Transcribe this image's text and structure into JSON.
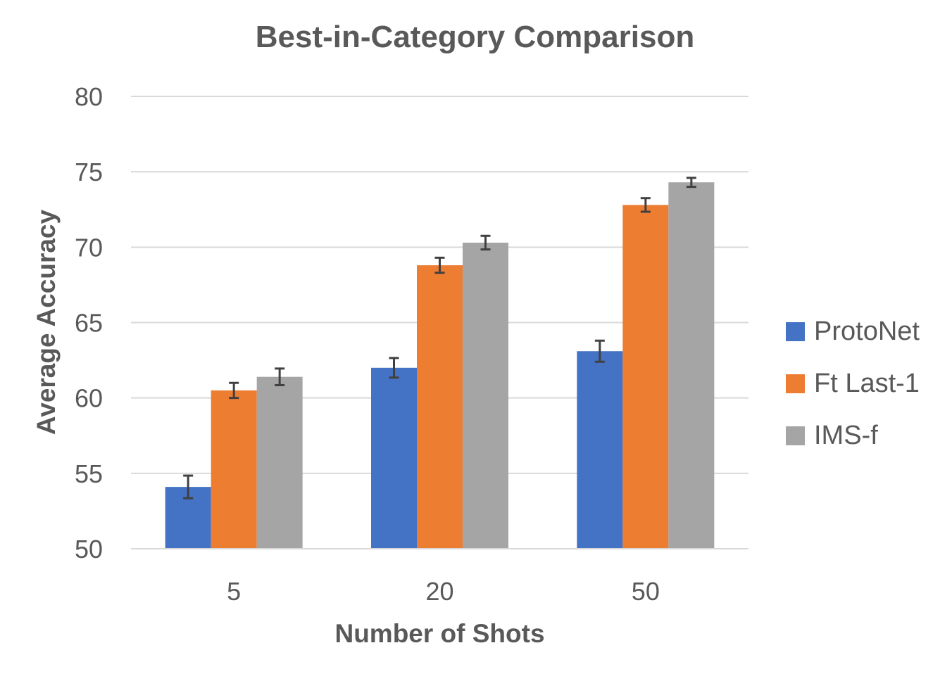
{
  "chart_data": {
    "type": "bar",
    "title": "Best-in-Category Comparison",
    "xlabel": "Number of Shots",
    "ylabel": "Average Accuracy",
    "categories": [
      "5",
      "20",
      "50"
    ],
    "ylim": [
      50,
      80
    ],
    "yticks": [
      50,
      55,
      60,
      65,
      70,
      75,
      80
    ],
    "grid": "horizontal",
    "legend_position": "right",
    "series": [
      {
        "name": "ProtoNet",
        "color": "#4472C4",
        "values": [
          54.1,
          62.0,
          63.1
        ],
        "errors": [
          0.75,
          0.65,
          0.7
        ]
      },
      {
        "name": "Ft Last-1",
        "color": "#ED7D31",
        "values": [
          60.5,
          68.8,
          72.8
        ],
        "errors": [
          0.5,
          0.5,
          0.45
        ]
      },
      {
        "name": "IMS-f",
        "color": "#A5A5A5",
        "values": [
          61.4,
          70.3,
          74.3
        ],
        "errors": [
          0.55,
          0.45,
          0.3
        ]
      }
    ]
  }
}
